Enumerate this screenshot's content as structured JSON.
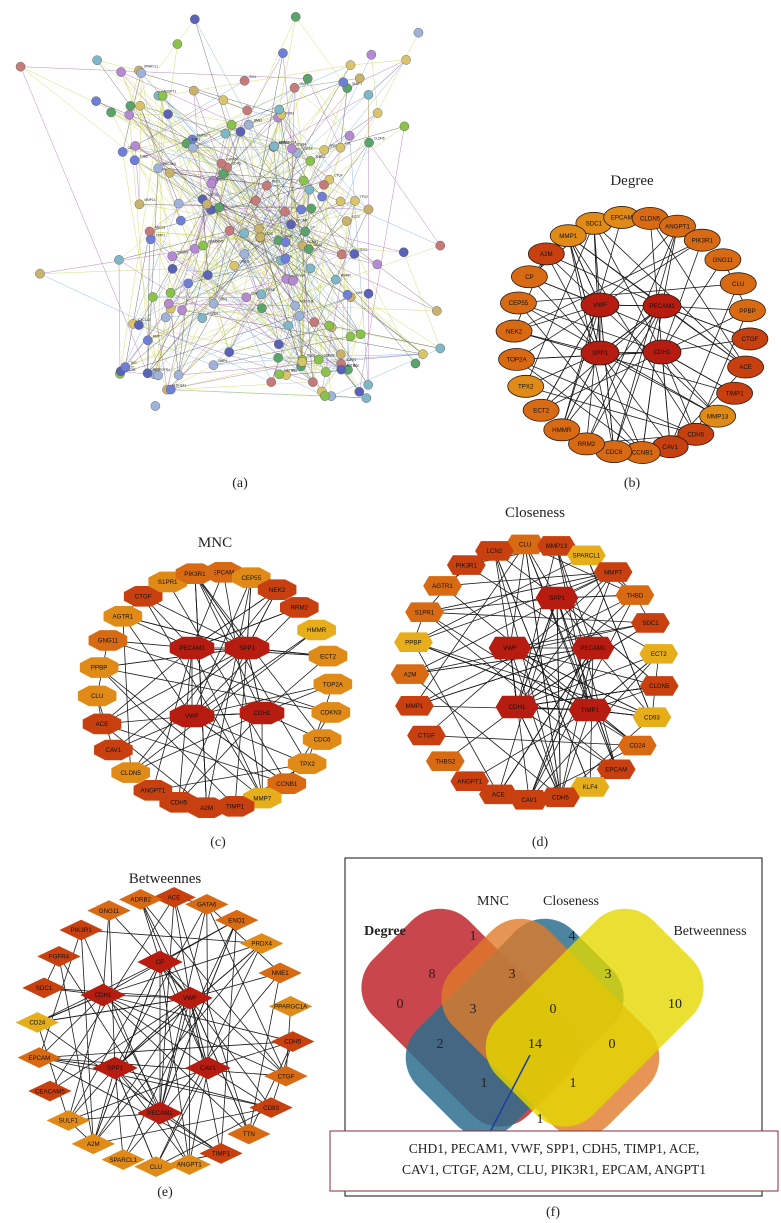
{
  "panels": {
    "a": {
      "label": "(a)",
      "nodes": [
        "CDC45",
        "NUP62",
        "CCNB1",
        "PTGDS",
        "CD24",
        "PPBP",
        "SPP1",
        "CDH1",
        "MMP1",
        "EPCAM",
        "CAV1",
        "TIMP1",
        "VWF",
        "CLU",
        "ACE",
        "A2M",
        "CTGF",
        "PECAM1",
        "CDH5",
        "SDC1",
        "KLF4",
        "THBD",
        "LCN2",
        "SOX2",
        "SULF1",
        "ENO1",
        "TTN",
        "NME1",
        "GATA6",
        "PRDX4",
        "CEACAM5",
        "ADRB2",
        "ECT2",
        "HMMR",
        "RRM2",
        "CDC6",
        "TPX2",
        "TOP2A",
        "NEK2",
        "CEP55",
        "CDKN3",
        "MMP7",
        "MMP13",
        "ANGPT1",
        "CLDN5",
        "PIK3R1",
        "GNG11",
        "FGFR4",
        "S1PR1",
        "AGTR1",
        "THBS2",
        "CD93",
        "SPARCL1",
        "PPARGC1A",
        "CP",
        "ITGB4",
        "LPL",
        "BMP4",
        "ABCC3",
        "KRT7",
        "GSTM3",
        "TNC",
        "ALDH1A1",
        "FOSB",
        "EGR1",
        "IGFBP3",
        "CXCL12",
        "NOTCH3",
        "ELN",
        "FBN1"
      ]
    },
    "b": {
      "title": "Degree",
      "label": "(b)",
      "outer": [
        "SDC1",
        "EPCAM",
        "CLDN5",
        "ANGPT1",
        "PIK3R1",
        "GNG11",
        "CLU",
        "PPBP",
        "CTGF",
        "ACE",
        "TIMP1",
        "MMP13",
        "CDH5",
        "CAV1",
        "CCNB1",
        "CDC6",
        "RRM2",
        "HMMR",
        "ECT2",
        "TPX2",
        "TOP2A",
        "NEK2",
        "CEP55",
        "CP",
        "A2M",
        "MMP1"
      ],
      "inner": [
        "VWF",
        "PECAM1",
        "SPP1",
        "CDH1"
      ]
    },
    "c": {
      "title": "MNC",
      "label": "(c)",
      "outer": [
        "EPCAM",
        "CEP55",
        "NEK2",
        "RRM2",
        "HMMR",
        "ECT2",
        "TOP2A",
        "CDKN3",
        "CDC6",
        "TPX2",
        "CCNB1",
        "MMP7",
        "TIMP1",
        "A2M",
        "CDH5",
        "ANGPT1",
        "CLDN5",
        "CAV1",
        "ACE",
        "CLU",
        "PPBP",
        "GNG11",
        "AGTR1",
        "CTGF",
        "S1PR1",
        "PIK3R1"
      ],
      "inner": [
        "PECAM1",
        "SPP1",
        "VWF",
        "CDH1"
      ]
    },
    "d": {
      "title": "Closeness",
      "label": "(d)",
      "outer": [
        "CLU",
        "MMP13",
        "SPARCL1",
        "MMP7",
        "THBD",
        "SDC1",
        "ECT2",
        "CLDN5",
        "CD93",
        "CD24",
        "EPCAM",
        "KLF4",
        "CDH5",
        "CAV1",
        "ACE",
        "ANGPT1",
        "THBS2",
        "CTGF",
        "MMP1",
        "A2M",
        "PPBP",
        "S1PR1",
        "AGTR1",
        "PIK3R1",
        "LCN2"
      ],
      "inner": [
        "SPP1",
        "VWF",
        "PECAM1",
        "CDH1",
        "TIMP1"
      ]
    },
    "e": {
      "title": "Betweennes",
      "label": "(e)",
      "outer": [
        "ACE",
        "GATA6",
        "ENO1",
        "PRDX4",
        "NME1",
        "PPARGC1A",
        "CDH5",
        "CTGF",
        "CD93",
        "TTN",
        "TIMP1",
        "ANGPT1",
        "CLU",
        "SPARCL1",
        "A2M",
        "SULF1",
        "CEACAM5",
        "EPCAM",
        "CD24",
        "SDC1",
        "FGFR4",
        "PIK3R1",
        "GNG11",
        "ADRB2"
      ],
      "inner": [
        "CP",
        "CDH1",
        "VWF",
        "SPP1",
        "CAV1",
        "PECAM1"
      ]
    },
    "f": {
      "label": "(f)",
      "sets": [
        "Degree",
        "MNC",
        "Closeness",
        "Betweenness"
      ],
      "counts": [
        "1",
        "4",
        "8",
        "3",
        "3",
        "10",
        "0",
        "3",
        "0",
        "2",
        "14",
        "0",
        "1",
        "1",
        "1"
      ],
      "common_genes_line1": "CHD1, PECAM1, VWF, SPP1, CDH5, TIMP1, ACE,",
      "common_genes_line2": "CAV1, CTGF, A2M, CLU, PIK3R1, EPCAM, ANGPT1"
    }
  },
  "colors": {
    "deep_red": "#b71c10",
    "red_orange": "#c8400f",
    "orange": "#d96a14",
    "light_orange": "#e08a18",
    "yellow_orange": "#e6ae1a",
    "venn_degree": "#c0272d",
    "venn_mnc": "#2e6f8e",
    "venn_closeness": "#e07a2a",
    "venn_betweenness": "#e3d800"
  }
}
